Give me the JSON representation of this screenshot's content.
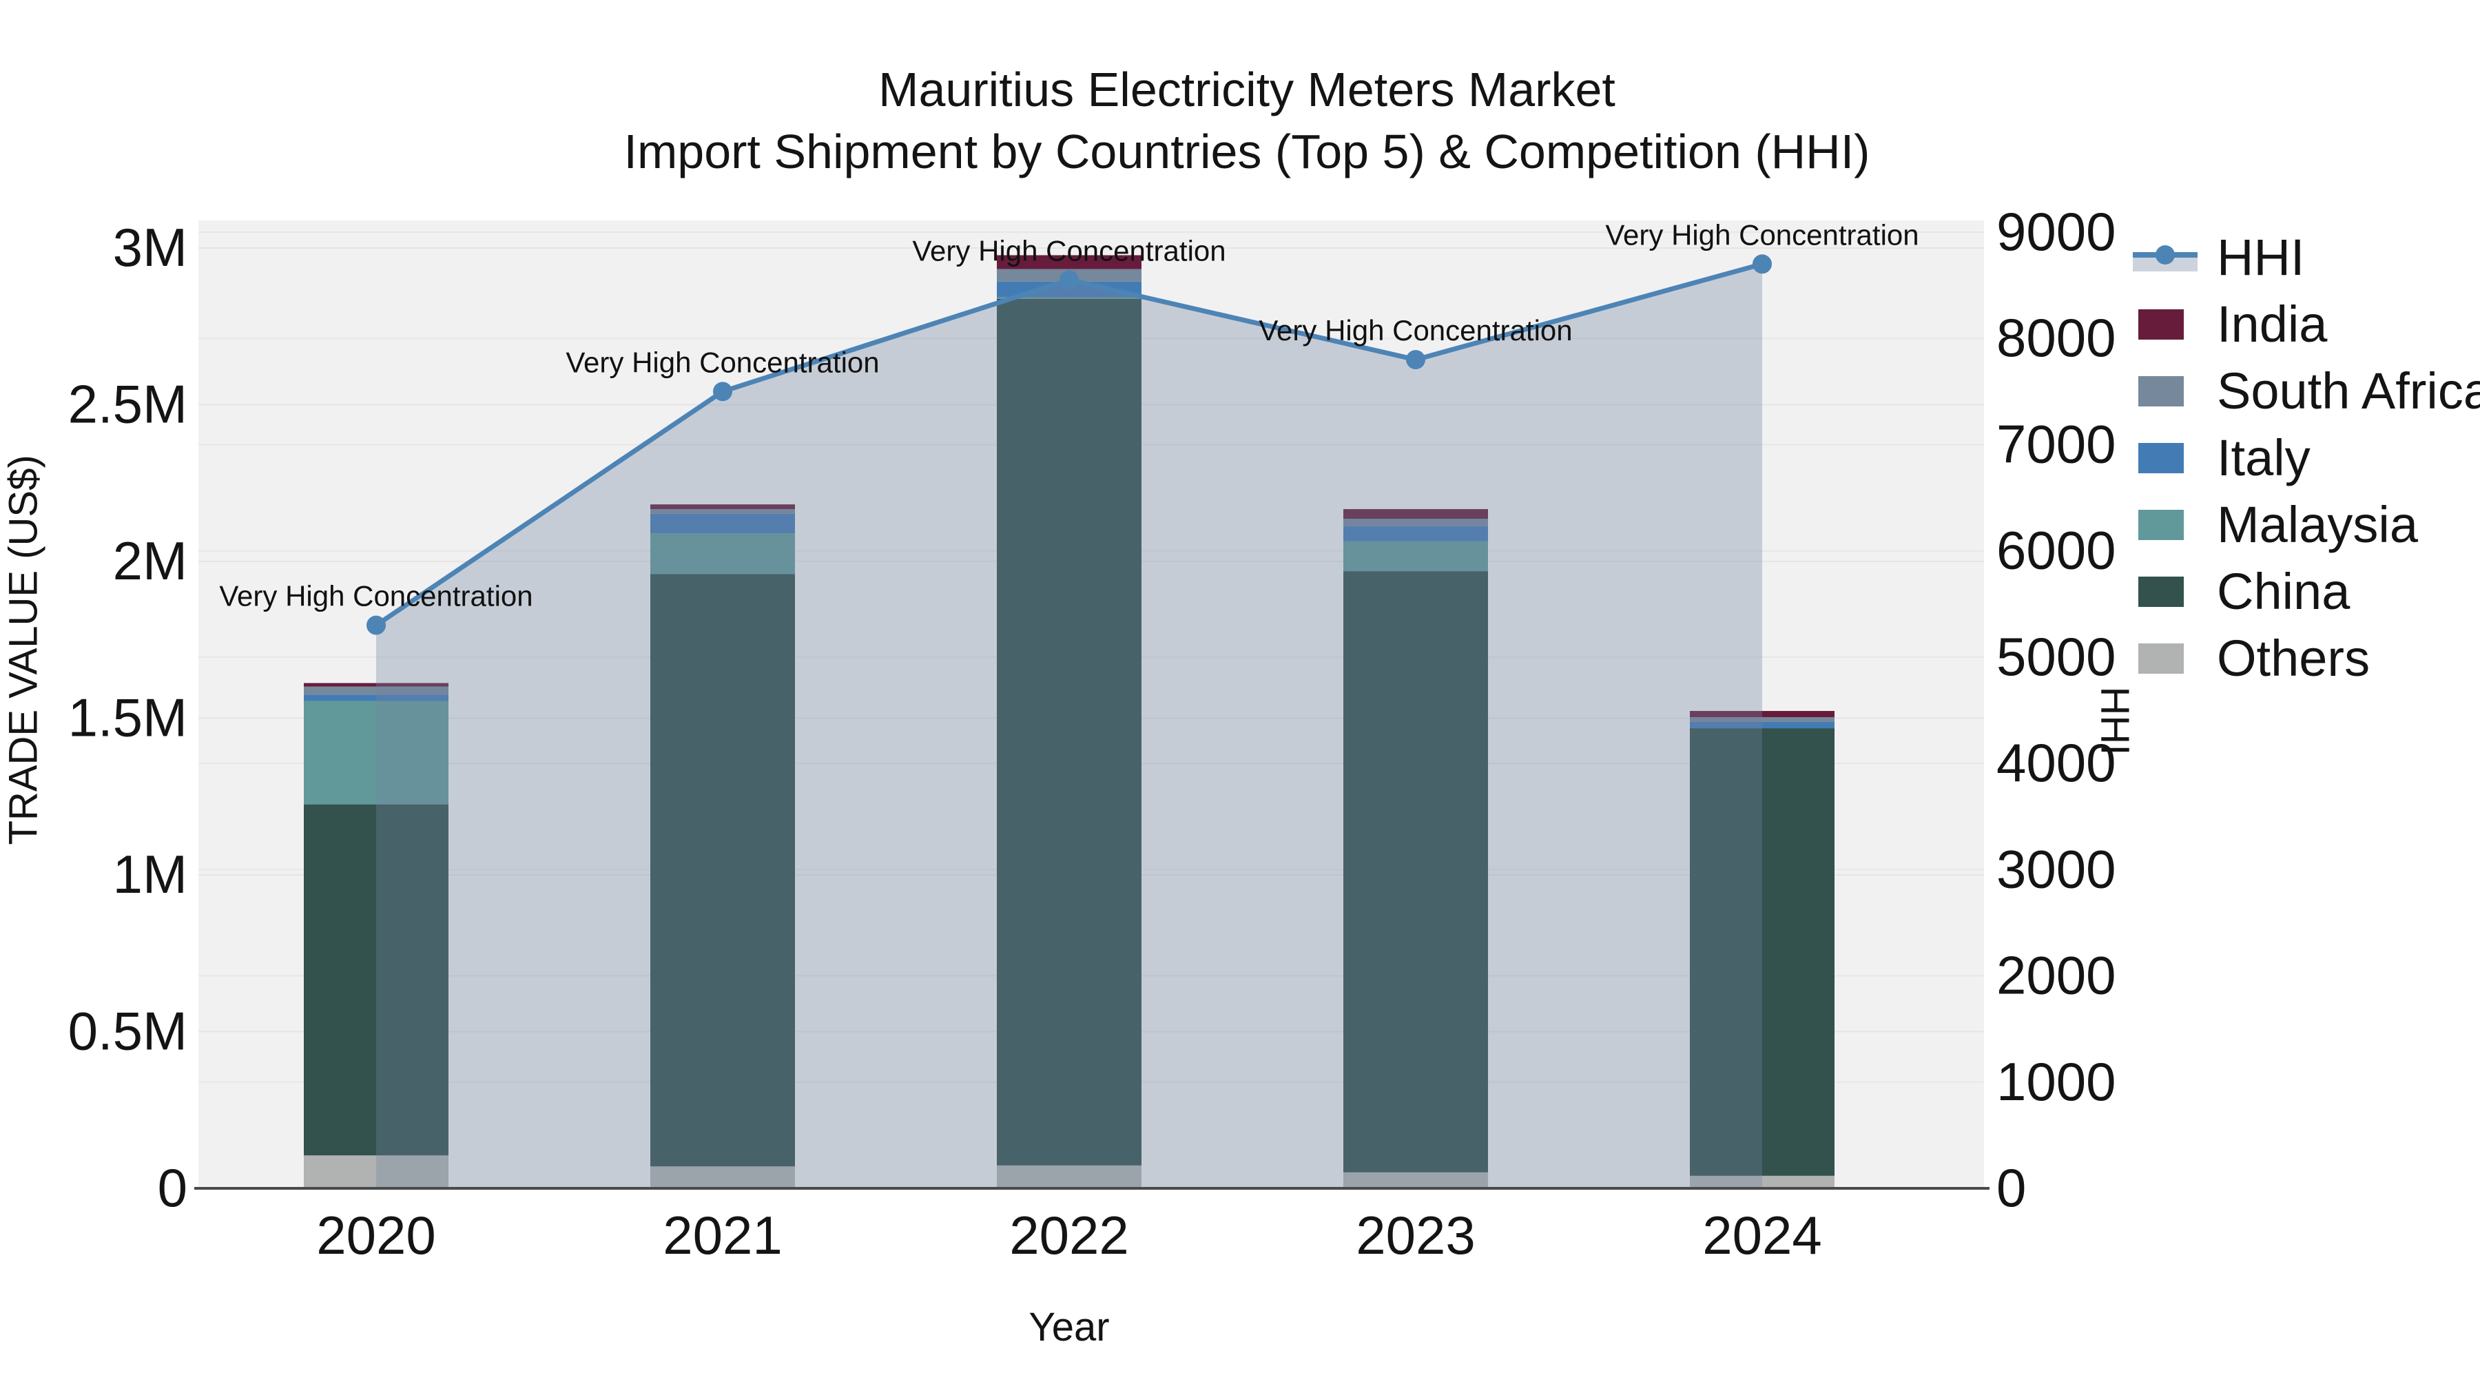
{
  "title": {
    "line1": "Mauritius Electricity Meters Market",
    "line2": "Import Shipment by Countries (Top 5) & Competition (HHI)"
  },
  "axes": {
    "left": {
      "label": "TRADE VALUE (US$)",
      "ticks": [
        "0",
        "0.5M",
        "1M",
        "1.5M",
        "2M",
        "2.5M",
        "3M"
      ],
      "max": 3000000
    },
    "right": {
      "label": "HHI",
      "ticks": [
        "0",
        "1000",
        "2000",
        "3000",
        "4000",
        "5000",
        "6000",
        "7000",
        "8000",
        "9000"
      ],
      "max": 9000
    },
    "x": {
      "label": "Year"
    }
  },
  "legend": {
    "items": [
      {
        "label": "HHI",
        "type": "line",
        "color": "#4d84b6",
        "area_color": "#ccd3dd"
      },
      {
        "label": "India",
        "type": "swatch",
        "color": "#671c3c"
      },
      {
        "label": "South Africa",
        "type": "swatch",
        "color": "#76889c"
      },
      {
        "label": "Italy",
        "type": "swatch",
        "color": "#437cb5"
      },
      {
        "label": "Malaysia",
        "type": "swatch",
        "color": "#61999a"
      },
      {
        "label": "China",
        "type": "swatch",
        "color": "#33514d"
      },
      {
        "label": "Others",
        "type": "swatch",
        "color": "#b0b3b1"
      }
    ]
  },
  "chart_data": {
    "type": "bar",
    "subtype": "stacked-bar-with-line",
    "title": "Mauritius Electricity Meters Market — Import Shipment by Countries (Top 5) & Competition (HHI)",
    "categories": [
      "2020",
      "2021",
      "2022",
      "2023",
      "2024"
    ],
    "xlabel": "Year",
    "ylabel_left": "TRADE VALUE (US$)",
    "ylabel_right": "HHI",
    "ylim_left": [
      0,
      3000000
    ],
    "ylim_right": [
      0,
      9000
    ],
    "grid": true,
    "legend_position": "right",
    "stack_order_bottom_to_top": [
      "Others",
      "China",
      "Malaysia",
      "Italy",
      "South Africa",
      "India"
    ],
    "series": [
      {
        "name": "Others",
        "color": "#b0b3b1",
        "values": [
          105000,
          70000,
          73000,
          51000,
          40000
        ]
      },
      {
        "name": "China",
        "color": "#33514d",
        "values": [
          1120000,
          1890000,
          2765000,
          1918000,
          1428000
        ]
      },
      {
        "name": "Malaysia",
        "color": "#61999a",
        "values": [
          330000,
          130000,
          5000,
          95000,
          0
        ]
      },
      {
        "name": "Italy",
        "color": "#437cb5",
        "values": [
          20000,
          62000,
          50000,
          48000,
          20000
        ]
      },
      {
        "name": "South Africa",
        "color": "#76889c",
        "values": [
          26000,
          15000,
          40000,
          24000,
          15000
        ]
      },
      {
        "name": "India",
        "color": "#671c3c",
        "values": [
          11000,
          15000,
          44000,
          31000,
          20000
        ]
      }
    ],
    "totals_by_year": [
      1612000,
      2182000,
      2977000,
      2167000,
      1523000
    ],
    "line_series": {
      "name": "HHI",
      "axis": "right",
      "color": "#4d84b6",
      "area_color": "rgba(113,131,161,0.34)",
      "values": [
        5300,
        7500,
        8550,
        7800,
        8700
      ]
    },
    "annotations": [
      {
        "text": "Very High Concentration",
        "x": "2020"
      },
      {
        "text": "Very High Concentration",
        "x": "2021"
      },
      {
        "text": "Very High Concentration",
        "x": "2022"
      },
      {
        "text": "Very High Concentration",
        "x": "2023"
      },
      {
        "text": "Very High Concentration",
        "x": "2024"
      }
    ]
  }
}
